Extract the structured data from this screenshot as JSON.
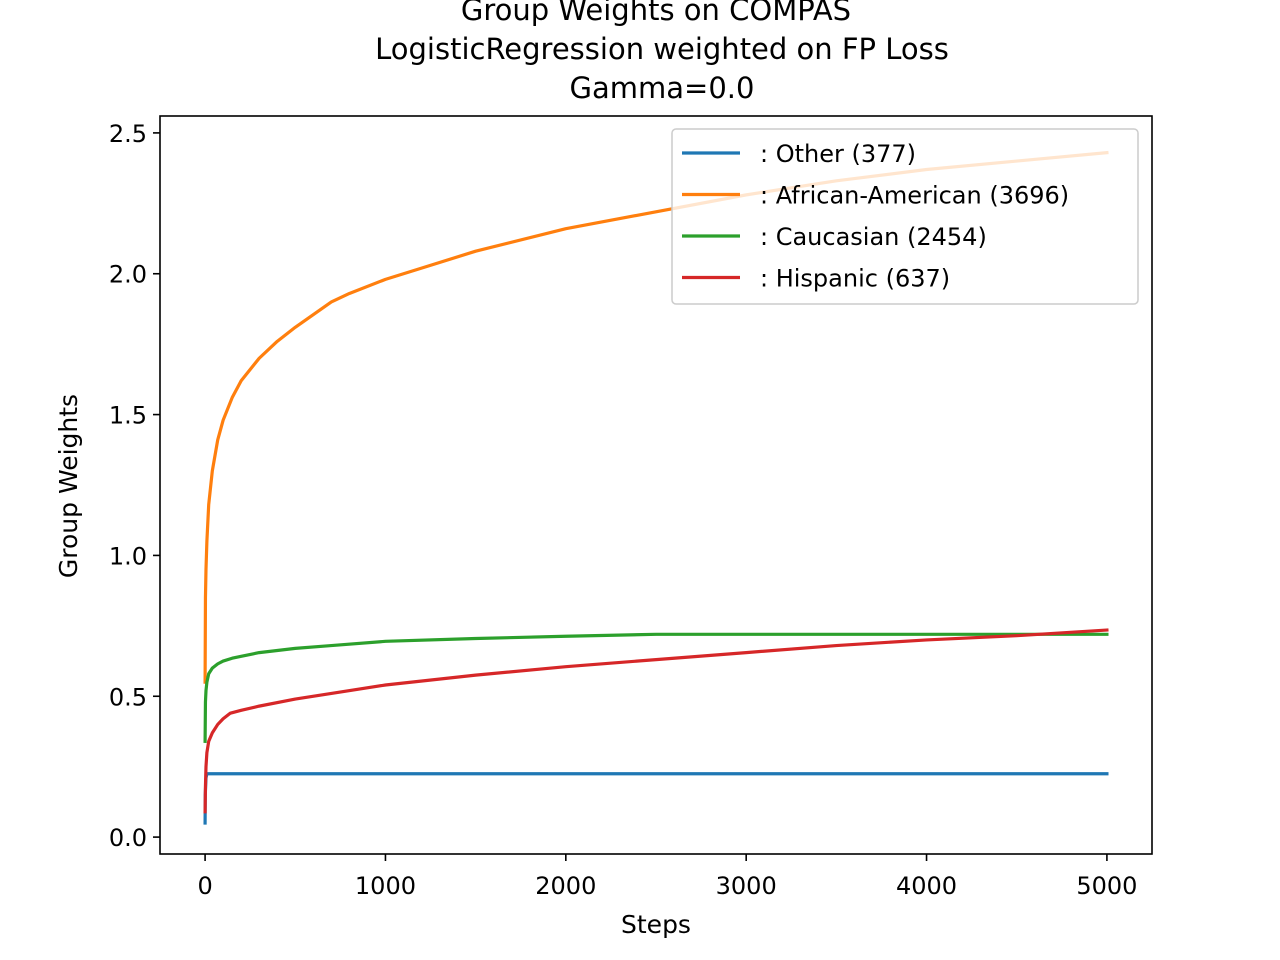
{
  "chart_data": {
    "type": "line",
    "title": [
      "Group Weights on COMPAS",
      "LogisticRegression weighted on FP Loss",
      "Gamma=0.0"
    ],
    "xlabel": "Steps",
    "ylabel": "Group Weights",
    "xlim": [
      -250,
      5250
    ],
    "ylim": [
      -0.06,
      2.56
    ],
    "xticks": [
      0,
      1000,
      2000,
      3000,
      4000,
      5000
    ],
    "xtick_labels": [
      "0",
      "1000",
      "2000",
      "3000",
      "4000",
      "5000"
    ],
    "yticks": [
      0.0,
      0.5,
      1.0,
      1.5,
      2.0,
      2.5
    ],
    "ytick_labels": [
      "0.0",
      "0.5",
      "1.0",
      "1.5",
      "2.0",
      "2.5"
    ],
    "grid": false,
    "legend_position": "top-right",
    "series": [
      {
        "name": ": Other  (377)",
        "color": "#1f77b4",
        "x": [
          0,
          1,
          5,
          10,
          20,
          5000
        ],
        "y": [
          0.05,
          0.15,
          0.21,
          0.225,
          0.225,
          0.225
        ]
      },
      {
        "name": ": African-American  (3696)",
        "color": "#ff7f0e",
        "x": [
          0,
          2,
          5,
          10,
          20,
          40,
          70,
          100,
          150,
          200,
          300,
          400,
          500,
          700,
          800,
          1000,
          1200,
          1500,
          2000,
          2500,
          3000,
          3500,
          4000,
          4500,
          5000
        ],
        "y": [
          0.55,
          0.85,
          0.95,
          1.05,
          1.18,
          1.3,
          1.41,
          1.48,
          1.56,
          1.62,
          1.7,
          1.76,
          1.81,
          1.9,
          1.93,
          1.98,
          2.02,
          2.08,
          2.16,
          2.22,
          2.28,
          2.33,
          2.37,
          2.4,
          2.43
        ]
      },
      {
        "name": ": Caucasian  (2454)",
        "color": "#2ca02c",
        "x": [
          0,
          2,
          5,
          10,
          20,
          40,
          70,
          100,
          150,
          200,
          300,
          500,
          700,
          1000,
          1500,
          2000,
          2500,
          3000,
          4000,
          5000
        ],
        "y": [
          0.34,
          0.48,
          0.52,
          0.55,
          0.58,
          0.6,
          0.615,
          0.625,
          0.635,
          0.642,
          0.655,
          0.67,
          0.68,
          0.695,
          0.705,
          0.713,
          0.72,
          0.72,
          0.72,
          0.72
        ]
      },
      {
        "name": ": Hispanic  (637)",
        "color": "#d62728",
        "x": [
          0,
          2,
          5,
          10,
          20,
          40,
          70,
          100,
          140,
          200,
          300,
          500,
          700,
          1000,
          1500,
          2000,
          2500,
          3000,
          3500,
          4000,
          4500,
          5000
        ],
        "y": [
          0.09,
          0.18,
          0.25,
          0.3,
          0.34,
          0.37,
          0.4,
          0.42,
          0.44,
          0.45,
          0.465,
          0.49,
          0.51,
          0.54,
          0.575,
          0.605,
          0.63,
          0.655,
          0.68,
          0.7,
          0.715,
          0.735
        ]
      }
    ]
  }
}
